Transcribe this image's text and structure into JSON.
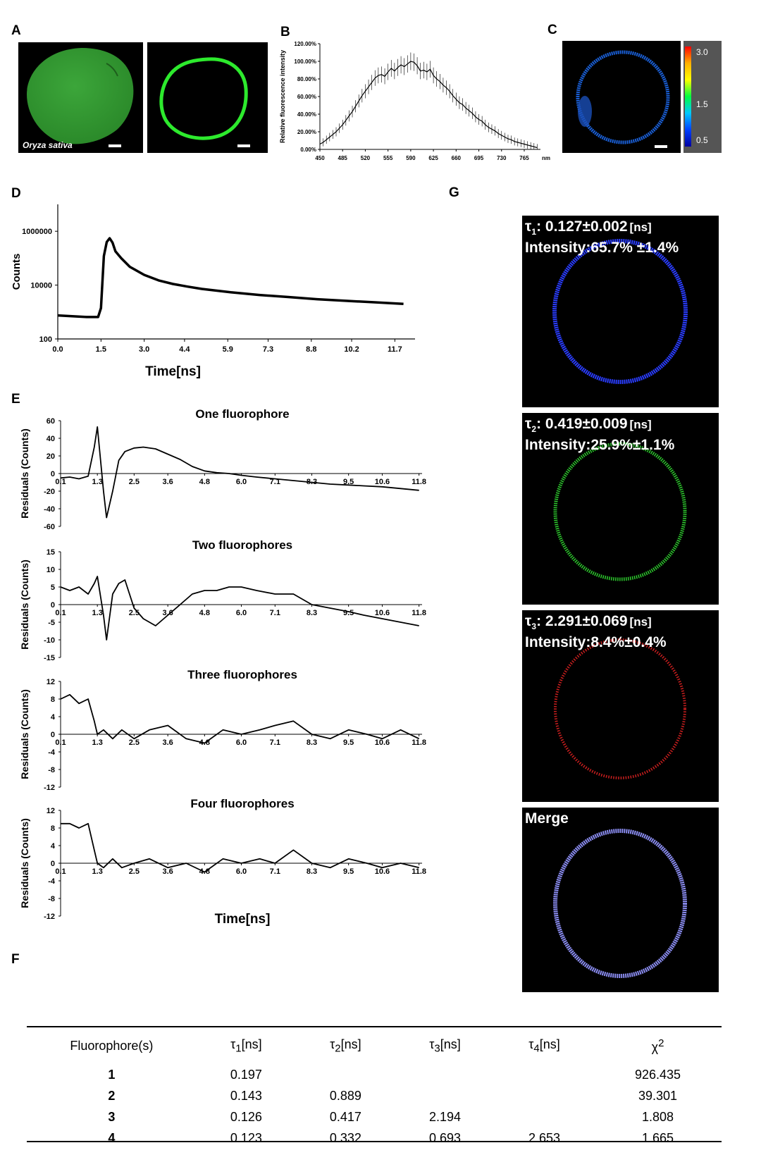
{
  "panels": {
    "A": {
      "label": "A",
      "species": "Oryza sativa"
    },
    "B": {
      "label": "B",
      "ylabel": "Relative fluorescence intensity",
      "xunit": "nm"
    },
    "C": {
      "label": "C",
      "colorbar_ticks": [
        "3.0",
        "1.5",
        "0.5"
      ]
    },
    "D": {
      "label": "D",
      "ylabel": "Counts",
      "xlabel": "Time[ns]"
    },
    "E": {
      "label": "E",
      "ylabel": "Residuals  (Counts)",
      "xlabel": "Time[ns]",
      "subplot_titles": [
        "One fluorophore",
        "Two  fluorophores",
        "Three  fluorophores",
        "Four fluorophores"
      ]
    },
    "G": {
      "label": "G",
      "images": [
        {
          "tau": "τ",
          "sub": "1",
          "value": ": 0.127±0.002",
          "unit": "[ns]",
          "intensity": "Intensity:65.7% ±1.4%",
          "color": "#2a3dff"
        },
        {
          "tau": "τ",
          "sub": "2",
          "value": ": 0.419±0.009",
          "unit": "[ns]",
          "intensity": "Intensity:25.9%±1.1%",
          "color": "#2ecc2e"
        },
        {
          "tau": "τ",
          "sub": "3",
          "value": ": 2.291±0.069",
          "unit": "[ns]",
          "intensity": "Intensity:8.4%±0.4%",
          "color": "#d42020"
        },
        {
          "title": "Merge",
          "color": "#8a8cf0"
        }
      ]
    },
    "F": {
      "label": "F",
      "headers": [
        "Fluorophore(s)",
        "τ1[ns]",
        "τ2[ns]",
        "τ3[ns]",
        "τ4[ns]",
        "χ2"
      ],
      "header_parts": [
        {
          "main": "Fluorophore(s)",
          "sub": "",
          "rest": ""
        },
        {
          "main": "τ",
          "sub": "1",
          "rest": "[ns]"
        },
        {
          "main": "τ",
          "sub": "2",
          "rest": "[ns]"
        },
        {
          "main": "τ",
          "sub": "3",
          "rest": "[ns]"
        },
        {
          "main": "τ",
          "sub": "4",
          "rest": "[ns]"
        },
        {
          "main": "χ",
          "sup": "2",
          "rest": ""
        }
      ],
      "rows": [
        [
          "1",
          "0.197",
          "",
          "",
          "",
          "926.435"
        ],
        [
          "2",
          "0.143",
          "0.889",
          "",
          "",
          "39.301"
        ],
        [
          "3",
          "0.126",
          "0.417",
          "2.194",
          "",
          "1.808"
        ],
        [
          "4",
          "0.123",
          "0.332",
          "0.693",
          "2.653",
          "1.665"
        ]
      ]
    }
  },
  "chart_data": [
    {
      "id": "B",
      "type": "line",
      "ylabel": "Relative fluorescence intensity",
      "xunit": "nm",
      "xticks": [
        450,
        485,
        520,
        555,
        590,
        625,
        660,
        695,
        730,
        765
      ],
      "yticks": [
        "0.00%",
        "20.00%",
        "40.00%",
        "60.00%",
        "80.00%",
        "100.00%",
        "120.00%"
      ],
      "xlim": [
        450,
        790
      ],
      "ylim": [
        0,
        120
      ],
      "x": [
        450,
        455,
        460,
        465,
        470,
        475,
        480,
        485,
        490,
        495,
        500,
        505,
        510,
        515,
        520,
        525,
        530,
        535,
        540,
        545,
        550,
        555,
        560,
        565,
        570,
        575,
        580,
        585,
        590,
        595,
        600,
        605,
        610,
        615,
        620,
        625,
        630,
        635,
        640,
        645,
        650,
        655,
        660,
        665,
        670,
        675,
        680,
        685,
        690,
        695,
        700,
        705,
        710,
        715,
        720,
        725,
        730,
        735,
        740,
        745,
        750,
        755,
        760,
        765,
        770,
        775,
        780,
        785
      ],
      "values": [
        6,
        8,
        11,
        14,
        17,
        20,
        24,
        28,
        33,
        38,
        43,
        49,
        55,
        61,
        66,
        71,
        76,
        81,
        84,
        85,
        83,
        88,
        92,
        89,
        93,
        96,
        94,
        97,
        100,
        99,
        95,
        89,
        90,
        88,
        91,
        84,
        80,
        77,
        73,
        70,
        66,
        61,
        57,
        53,
        51,
        47,
        44,
        41,
        37,
        34,
        32,
        28,
        25,
        23,
        21,
        18,
        16,
        14,
        12,
        11,
        9,
        8,
        7,
        6,
        5,
        4,
        3,
        2
      ],
      "err": 10
    },
    {
      "id": "D",
      "type": "line",
      "ylabel": "Counts",
      "xlabel": "Time[ns]",
      "xticks": [
        "0.0",
        "1.5",
        "3.0",
        "4.4",
        "5.9",
        "7.3",
        "8.8",
        "10.2",
        "11.7"
      ],
      "yticks": [
        "100",
        "10000",
        "1000000"
      ],
      "yscale": "log",
      "xlim": [
        0,
        12.4
      ],
      "x": [
        0,
        0.5,
        1.0,
        1.4,
        1.5,
        1.6,
        1.7,
        1.8,
        1.9,
        2.0,
        2.2,
        2.5,
        3.0,
        3.5,
        4.0,
        4.5,
        5.0,
        6.0,
        7.0,
        8.0,
        9.0,
        10.0,
        11.0,
        12.0
      ],
      "values": [
        750,
        700,
        650,
        650,
        1400,
        120000,
        400000,
        550000,
        380000,
        180000,
        100000,
        48000,
        24000,
        15000,
        11000,
        8800,
        7200,
        5400,
        4300,
        3600,
        3000,
        2600,
        2300,
        2000
      ]
    },
    {
      "id": "E1",
      "type": "line",
      "title": "One fluorophore",
      "ylabel": "Residuals  (Counts)",
      "yticks": [
        "60",
        "40",
        "20",
        "0",
        "-20",
        "-40",
        "-60"
      ],
      "xticks": [
        "0.1",
        "1.3",
        "2.5",
        "3.6",
        "4.8",
        "6.0",
        "7.1",
        "8.3",
        "9.5",
        "10.6",
        "11.8"
      ],
      "ylim": [
        -60,
        60
      ],
      "xlim": [
        0.1,
        11.9
      ],
      "x": [
        0.1,
        0.4,
        0.7,
        1.0,
        1.2,
        1.3,
        1.5,
        1.6,
        1.8,
        2.0,
        2.2,
        2.5,
        2.8,
        3.2,
        3.6,
        4.0,
        4.4,
        4.8,
        5.2,
        5.6,
        6.0,
        6.5,
        7.1,
        7.7,
        8.3,
        8.9,
        9.5,
        10.0,
        10.6,
        11.2,
        11.8
      ],
      "values": [
        -5,
        -4,
        -6,
        -3,
        30,
        53,
        -20,
        -50,
        -20,
        15,
        25,
        29,
        30,
        28,
        22,
        16,
        8,
        3,
        1,
        0,
        -2,
        -4,
        -6,
        -8,
        -10,
        -12,
        -13,
        -14,
        -15,
        -17,
        -19
      ]
    },
    {
      "id": "E2",
      "type": "line",
      "title": "Two  fluorophores",
      "ylabel": "Residuals  (Counts)",
      "yticks": [
        "15",
        "10",
        "5",
        "0",
        "-5",
        "-10",
        "-15"
      ],
      "xticks": [
        "0.1",
        "1.3",
        "2.5",
        "3.6",
        "4.8",
        "6.0",
        "7.1",
        "8.3",
        "9.5",
        "10.6",
        "11.8"
      ],
      "ylim": [
        -15,
        15
      ],
      "xlim": [
        0.1,
        11.9
      ],
      "x": [
        0.1,
        0.4,
        0.7,
        1.0,
        1.2,
        1.3,
        1.5,
        1.6,
        1.8,
        2.0,
        2.2,
        2.5,
        2.8,
        3.2,
        3.6,
        4.0,
        4.4,
        4.8,
        5.2,
        5.6,
        6.0,
        6.5,
        7.1,
        7.7,
        8.3,
        8.9,
        9.5,
        10.0,
        10.6,
        11.2,
        11.8
      ],
      "values": [
        5,
        4,
        5,
        3,
        6,
        8,
        -3,
        -10,
        3,
        6,
        7,
        -1,
        -4,
        -6,
        -3,
        0,
        3,
        4,
        4,
        5,
        5,
        4,
        3,
        3,
        0,
        -1,
        -2,
        -3,
        -4,
        -5,
        -6
      ]
    },
    {
      "id": "E3",
      "type": "line",
      "title": "Three  fluorophores",
      "ylabel": "Residuals  (Counts)",
      "yticks": [
        "12",
        "8",
        "4",
        "0",
        "-4",
        "-8",
        "-12"
      ],
      "xticks": [
        "0.1",
        "1.3",
        "2.5",
        "3.6",
        "4.8",
        "6.0",
        "7.1",
        "8.3",
        "9.5",
        "10.6",
        "11.8"
      ],
      "ylim": [
        -12,
        12
      ],
      "xlim": [
        0.1,
        11.9
      ],
      "x": [
        0.1,
        0.4,
        0.7,
        1.0,
        1.2,
        1.3,
        1.5,
        1.8,
        2.1,
        2.5,
        3.0,
        3.6,
        4.2,
        4.8,
        5.4,
        6.0,
        6.6,
        7.1,
        7.7,
        8.3,
        8.9,
        9.5,
        10.1,
        10.6,
        11.2,
        11.8
      ],
      "values": [
        8,
        9,
        7,
        8,
        3,
        0,
        1,
        -1,
        1,
        -1,
        1,
        2,
        -1,
        -2,
        1,
        0,
        1,
        2,
        3,
        0,
        -1,
        1,
        0,
        -1,
        1,
        -1
      ]
    },
    {
      "id": "E4",
      "type": "line",
      "title": "Four fluorophores",
      "ylabel": "Residuals  (Counts)",
      "yticks": [
        "12",
        "8",
        "4",
        "0",
        "-4",
        "-8",
        "-12"
      ],
      "xticks": [
        "0.1",
        "1.3",
        "2.5",
        "3.6",
        "4.8",
        "6.0",
        "7.1",
        "8.3",
        "9.5",
        "10.6",
        "11.8"
      ],
      "ylim": [
        -12,
        12
      ],
      "xlim": [
        0.1,
        11.9
      ],
      "x": [
        0.1,
        0.4,
        0.7,
        1.0,
        1.2,
        1.3,
        1.5,
        1.8,
        2.1,
        2.5,
        3.0,
        3.6,
        4.2,
        4.8,
        5.4,
        6.0,
        6.6,
        7.1,
        7.7,
        8.3,
        8.9,
        9.5,
        10.1,
        10.6,
        11.2,
        11.8
      ],
      "values": [
        9,
        9,
        8,
        9,
        3,
        0,
        -1,
        1,
        -1,
        0,
        1,
        -1,
        0,
        -2,
        1,
        0,
        1,
        0,
        3,
        0,
        -1,
        1,
        0,
        -1,
        0,
        -1
      ]
    }
  ]
}
